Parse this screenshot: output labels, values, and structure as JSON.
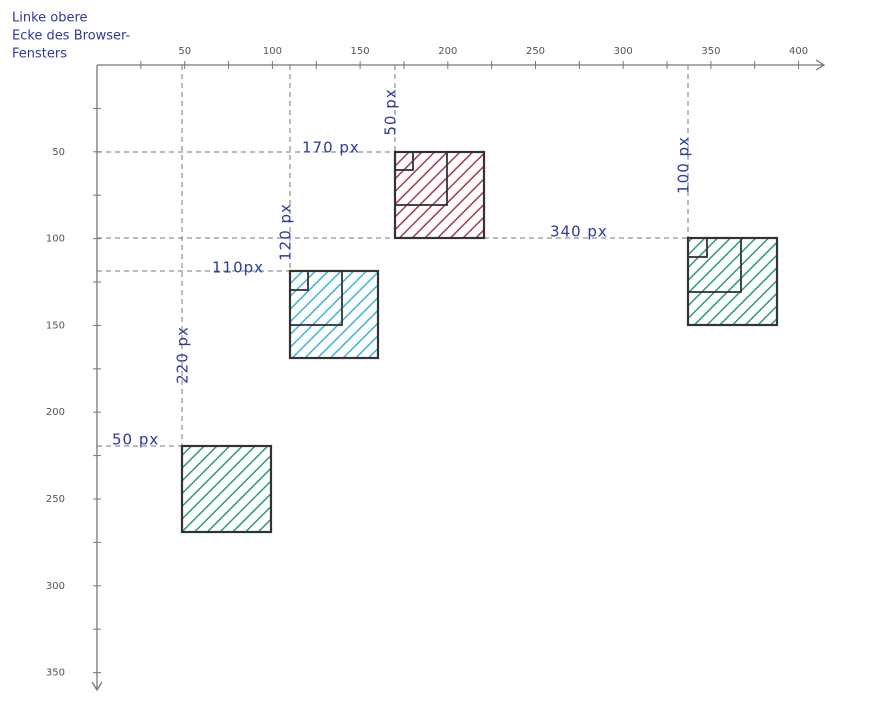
{
  "corner_note": [
    "Linke obere",
    "Ecke des Browser-",
    "Fensters"
  ],
  "x_axis": {
    "ticks": [
      "50",
      "100",
      "150",
      "200",
      "250",
      "300",
      "350",
      "400"
    ]
  },
  "y_axis": {
    "ticks": [
      "50",
      "100",
      "150",
      "200",
      "250",
      "300",
      "350"
    ]
  },
  "annotations": [
    "50 px",
    "220 px",
    "110px",
    "120 px",
    "170 px",
    "50 px",
    "340 px",
    "100 px"
  ]
}
